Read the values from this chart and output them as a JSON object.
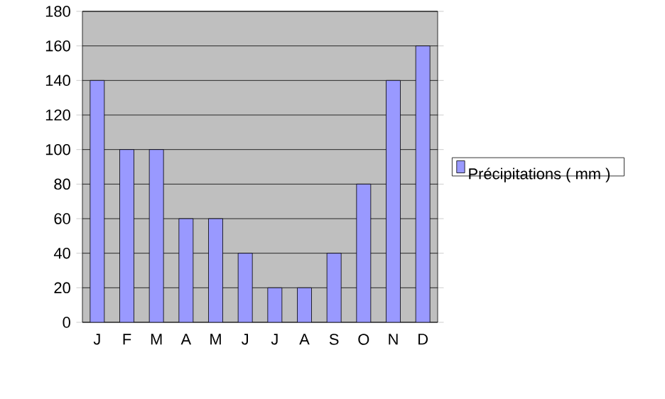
{
  "chart_data": {
    "type": "bar",
    "categories": [
      "J",
      "F",
      "M",
      "A",
      "M",
      "J",
      "J",
      "A",
      "S",
      "O",
      "N",
      "D"
    ],
    "series": [
      {
        "name": "Précipitations ( mm )",
        "color": "#9999ff",
        "values": [
          140,
          100,
          100,
          60,
          60,
          40,
          20,
          20,
          40,
          80,
          140,
          160
        ]
      }
    ],
    "ylim": [
      0,
      180
    ],
    "yticks": [
      0,
      20,
      40,
      60,
      80,
      100,
      120,
      140,
      160,
      180
    ],
    "grid": "y",
    "legend": "right"
  }
}
